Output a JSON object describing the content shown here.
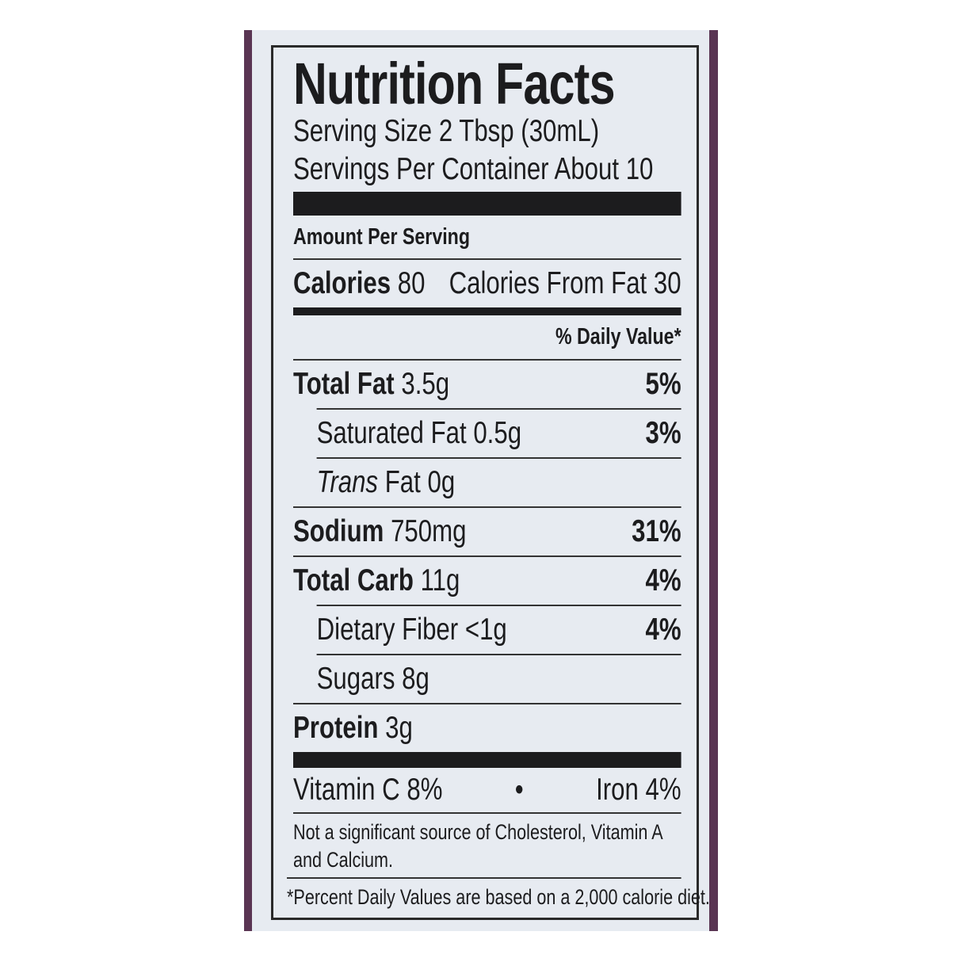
{
  "colors": {
    "package": "#5a3553",
    "label": "#e7ebf1",
    "ink": "#1c1c1e"
  },
  "title": "Nutrition Facts",
  "serving_size": "Serving Size 2 Tbsp (30mL)",
  "servings_per_container": "Servings Per Container About 10",
  "amount_per_serving": "Amount Per Serving",
  "calories": {
    "label": "Calories",
    "value": "80",
    "from_fat": "Calories From Fat 30"
  },
  "daily_value_header": "% Daily Value*",
  "nutrients": [
    {
      "label": "Total Fat",
      "amount": "3.5g",
      "dv": "5%"
    },
    {
      "label": "Saturated Fat",
      "amount": "0.5g",
      "dv": "3%"
    },
    {
      "label": "Trans",
      "label_suffix": "Fat",
      "amount": "0g",
      "dv": ""
    },
    {
      "label": "Sodium",
      "amount": "750mg",
      "dv": "31%"
    },
    {
      "label": "Total Carb",
      "amount": "11g",
      "dv": "4%"
    },
    {
      "label": "Dietary Fiber",
      "amount": "<1g",
      "dv": "4%"
    },
    {
      "label": "Sugars",
      "amount": "8g",
      "dv": ""
    },
    {
      "label": "Protein",
      "amount": "3g",
      "dv": ""
    }
  ],
  "vitamins": {
    "vitamin_c": "Vitamin C 8%",
    "separator": "•",
    "iron": "Iron 4%"
  },
  "not_significant": "Not a significant source of Cholesterol, Vitamin A and Calcium.",
  "footnote": "*Percent Daily Values are based on a 2,000 calorie diet."
}
